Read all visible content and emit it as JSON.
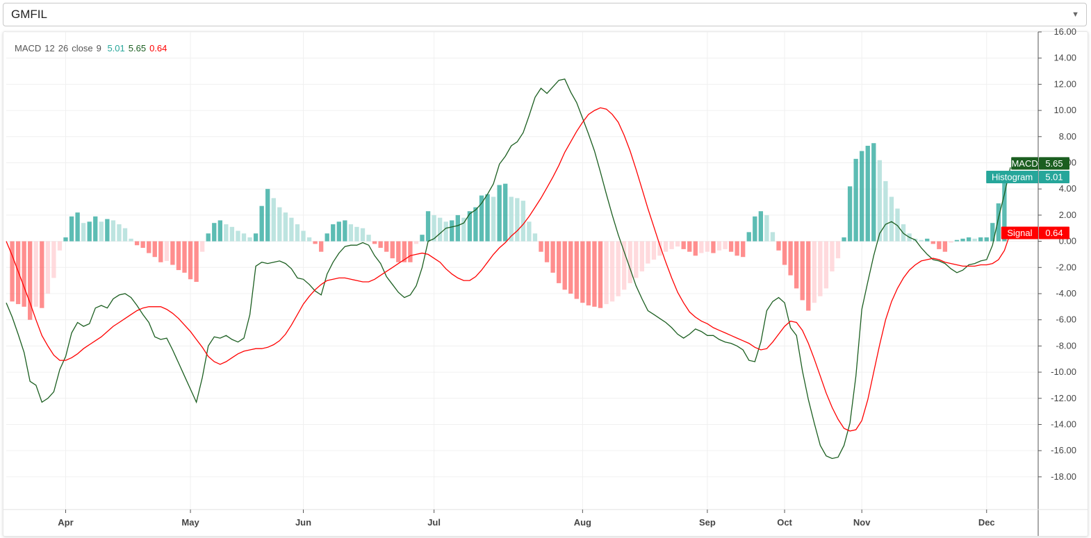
{
  "symbol_select": {
    "value": "GMFIL"
  },
  "legend": {
    "name": "MACD",
    "fast": "12",
    "slow": "26",
    "source": "close",
    "signal_period": "9",
    "hist_value": "5.01",
    "macd_value": "5.65",
    "signal_value": "0.64",
    "hist_color": "#26a69a",
    "macd_color": "#1b5e20",
    "signal_color": "#ff0000"
  },
  "badges": {
    "macd": {
      "label": "MACD",
      "value": "5.65"
    },
    "histogram": {
      "label": "Histogram",
      "value": "5.01"
    },
    "signal": {
      "label": "Signal",
      "value": "0.64"
    }
  },
  "chart_data": {
    "type": "line",
    "y_ticks": [
      "16.00",
      "14.00",
      "12.00",
      "10.00",
      "8.00",
      "6.00",
      "4.00",
      "2.00",
      "0.00",
      "-2.00",
      "-4.00",
      "-6.00",
      "-8.00",
      "-10.00",
      "-12.00",
      "-14.00",
      "-16.00",
      "-18.00"
    ],
    "y_tick_values": [
      16,
      14,
      12,
      10,
      8,
      6,
      4,
      2,
      0,
      -2,
      -4,
      -6,
      -8,
      -10,
      -12,
      -14,
      -16,
      -18
    ],
    "x_ticks": [
      "Apr",
      "May",
      "Jun",
      "Jul",
      "Aug",
      "Sep",
      "Oct",
      "Nov",
      "Dec"
    ],
    "x_tick_index": [
      10,
      31,
      50,
      72,
      97,
      118,
      131,
      144,
      165
    ],
    "ylim": [
      -20.5,
      16.0
    ],
    "grid": true,
    "legend_position": "top-left",
    "series": [
      {
        "name": "MACD",
        "color": "#1b5e20",
        "values": [
          -4.7,
          -5.8,
          -7.1,
          -8.5,
          -10.7,
          -11,
          -12.3,
          -12,
          -11.5,
          -9.8,
          -8.8,
          -7,
          -6.2,
          -6.5,
          -6.3,
          -5.1,
          -4.9,
          -5.1,
          -4.4,
          -4.1,
          -4,
          -4.3,
          -4.9,
          -5.6,
          -6.2,
          -7.3,
          -7.5,
          -7.4,
          -8.3,
          -9.3,
          -10.3,
          -11.3,
          -12.3,
          -10.4,
          -8,
          -7.3,
          -7.4,
          -7.2,
          -7.5,
          -7.7,
          -7.4,
          -5.6,
          -1.9,
          -1.6,
          -1.7,
          -1.6,
          -1.5,
          -1.7,
          -2.1,
          -2.8,
          -2.9,
          -3.3,
          -3.8,
          -4.1,
          -2.5,
          -1.6,
          -0.9,
          -0.4,
          -0.3,
          -0.3,
          -0.1,
          -0.3,
          -1.1,
          -1.7,
          -2.7,
          -3.3,
          -3.9,
          -4.3,
          -4.1,
          -3.4,
          -2,
          0,
          0.2,
          0.6,
          1,
          1.1,
          1.2,
          1.4,
          2.1,
          2.4,
          2.9,
          3.6,
          4.4,
          5.9,
          6.5,
          7.3,
          7.6,
          8.3,
          9.6,
          11,
          11.7,
          11.3,
          11.8,
          12.3,
          12.4,
          11.4,
          10.6,
          9.4,
          8.2,
          6.9,
          5.3,
          3.6,
          2,
          0.5,
          -0.8,
          -2.1,
          -3.4,
          -4.4,
          -5.3,
          -5.6,
          -5.9,
          -6.2,
          -6.6,
          -7.1,
          -7.4,
          -7.1,
          -6.7,
          -6.9,
          -7.2,
          -7.2,
          -7.5,
          -7.7,
          -7.8,
          -8,
          -8.3,
          -9.1,
          -9.2,
          -7.7,
          -5.3,
          -4.6,
          -4.3,
          -4.7,
          -6.6,
          -7.2,
          -9.9,
          -12.1,
          -13.9,
          -15.6,
          -16.4,
          -16.6,
          -16.5,
          -15.6,
          -13.9,
          -10.3,
          -5.2,
          -3.1,
          -1.1,
          0.6,
          1.3,
          1.5,
          1.2,
          0.6,
          0.3,
          0.1,
          -0.5,
          -1,
          -1.4,
          -1.5,
          -1.7,
          -2.1,
          -2.4,
          -2.2,
          -1.8,
          -1.7,
          -1.5,
          -1.4,
          -0.3,
          1.8,
          3.6,
          5.65
        ]
      },
      {
        "name": "Signal",
        "color": "#ff0000",
        "values": [
          0,
          -1.1,
          -2.3,
          -3.5,
          -4.7,
          -6,
          -7.2,
          -8,
          -8.7,
          -9.1,
          -9.1,
          -8.9,
          -8.6,
          -8.2,
          -7.9,
          -7.6,
          -7.3,
          -6.9,
          -6.5,
          -6.2,
          -5.9,
          -5.6,
          -5.3,
          -5.1,
          -5,
          -5,
          -5,
          -5.2,
          -5.5,
          -5.9,
          -6.4,
          -6.9,
          -7.5,
          -8.1,
          -8.8,
          -9.2,
          -9.4,
          -9.2,
          -8.9,
          -8.6,
          -8.4,
          -8.3,
          -8.2,
          -8.2,
          -8.1,
          -7.9,
          -7.6,
          -7.1,
          -6.4,
          -5.6,
          -4.8,
          -4.2,
          -3.7,
          -3.3,
          -3,
          -2.9,
          -2.8,
          -2.8,
          -2.9,
          -3,
          -3.1,
          -3.1,
          -2.9,
          -2.6,
          -2.3,
          -2,
          -1.7,
          -1.4,
          -1.1,
          -1,
          -0.9,
          -1,
          -1.3,
          -1.6,
          -2.1,
          -2.5,
          -2.8,
          -3,
          -3,
          -2.7,
          -2.2,
          -1.6,
          -1,
          -0.5,
          -0.1,
          0.4,
          0.8,
          1.3,
          1.9,
          2.6,
          3.3,
          4.1,
          4.9,
          5.8,
          6.8,
          7.6,
          8.4,
          9.1,
          9.7,
          10,
          10.2,
          10.1,
          9.7,
          9.1,
          8.1,
          6.9,
          5.5,
          4,
          2.5,
          1.1,
          -0.3,
          -1.6,
          -2.8,
          -3.9,
          -4.7,
          -5.4,
          -5.8,
          -6.1,
          -6.3,
          -6.6,
          -6.8,
          -7,
          -7.2,
          -7.4,
          -7.6,
          -7.8,
          -8.1,
          -8.3,
          -8.2,
          -7.7,
          -7.1,
          -6.5,
          -6.1,
          -6.2,
          -6.8,
          -7.8,
          -9,
          -10.3,
          -11.6,
          -12.7,
          -13.6,
          -14.3,
          -14.5,
          -14.4,
          -13.7,
          -12.1,
          -10,
          -7.9,
          -6,
          -4.6,
          -3.6,
          -2.8,
          -2.2,
          -1.8,
          -1.5,
          -1.4,
          -1.3,
          -1.4,
          -1.6,
          -1.7,
          -1.8,
          -1.9,
          -1.9,
          -1.9,
          -1.8,
          -1.8,
          -1.7,
          -1.4,
          -0.7,
          0.64
        ]
      },
      {
        "name": "Histogram",
        "color": "#26a69a",
        "values": [
          0,
          -4.6,
          -4.8,
          -5,
          -6,
          -5,
          -5.1,
          -4,
          -2.8,
          -0.7,
          0.3,
          1.9,
          2.2,
          1.4,
          1.5,
          1.9,
          1.5,
          1.7,
          1.6,
          1.3,
          1,
          0.2,
          -0.3,
          -0.5,
          -0.9,
          -1.2,
          -1.6,
          -1.5,
          -1.8,
          -2.2,
          -2.4,
          -2.9,
          -3.1,
          -0.8,
          0.6,
          1.4,
          1.6,
          1.3,
          1.1,
          0.8,
          0.6,
          0.3,
          0.6,
          2.7,
          4,
          3.3,
          2.6,
          2.2,
          1.8,
          1.3,
          0.8,
          0.3,
          -0.2,
          -0.8,
          0.6,
          1.3,
          1.5,
          1.6,
          1.3,
          1.1,
          1,
          0.5,
          -0.2,
          -0.5,
          -0.8,
          -1.3,
          -1.6,
          -1.6,
          -1.6,
          -0.2,
          0.5,
          2.3,
          2,
          1.8,
          1.5,
          1.6,
          2,
          1.8,
          2.3,
          2.6,
          3.5,
          3.6,
          3.4,
          4.3,
          4.4,
          3.4,
          3.3,
          3.1,
          1.5,
          0.6,
          -0.8,
          -1.6,
          -2.4,
          -3.2,
          -3.7,
          -4,
          -4.4,
          -4.7,
          -4.9,
          -5,
          -5.1,
          -4.8,
          -4.6,
          -4.2,
          -3.7,
          -3.2,
          -2.8,
          -2.3,
          -1.7,
          -1.4,
          -1.1,
          -0.8,
          -0.6,
          -0.4,
          -0.6,
          -0.8,
          -1.1,
          -0.9,
          -0.8,
          -0.9,
          -0.7,
          -0.6,
          -0.8,
          -1.1,
          -1.2,
          0.7,
          1.9,
          2.3,
          2,
          0.7,
          -0.7,
          -1.8,
          -2.6,
          -3.6,
          -4.5,
          -5.3,
          -4.7,
          -4.2,
          -3.6,
          -2.3,
          -1.3,
          0.3,
          4.2,
          6.3,
          6.9,
          7.3,
          7.5,
          6.2,
          4.6,
          3.4,
          2.5,
          1.3,
          0.6,
          0.2,
          0.1,
          0.2,
          -0.2,
          -0.6,
          -0.8,
          -0.1,
          0.1,
          0.2,
          0.3,
          0.2,
          0.3,
          0.3,
          1.4,
          2.9,
          5.01
        ]
      }
    ]
  }
}
